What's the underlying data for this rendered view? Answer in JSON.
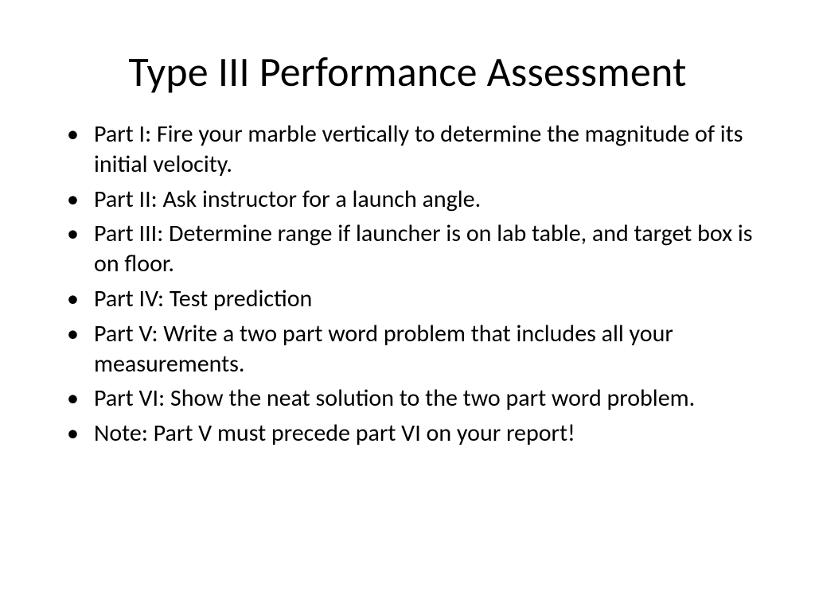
{
  "slide": {
    "title": "Type III Performance Assessment",
    "title_fontsize": 52,
    "title_color": "#000000",
    "background_color": "#ffffff",
    "body_fontsize": 30,
    "bullet_color": "#000000",
    "text_color": "#000000",
    "font_family": "Calibri",
    "bullets": [
      "Part I:  Fire your marble vertically to determine the magnitude of its initial velocity.",
      "Part II:  Ask instructor for a launch angle.",
      "Part III:  Determine range if launcher is on lab table, and target box is on floor.",
      "Part IV:  Test prediction",
      "Part V:  Write a two part word problem that includes all your measurements.",
      "Part VI: Show the neat solution to the two part word problem.",
      "Note:  Part V must precede part VI on your report!"
    ]
  }
}
